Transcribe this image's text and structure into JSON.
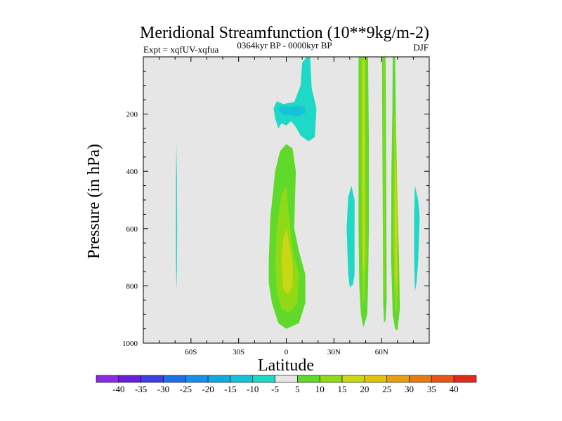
{
  "chart_data": {
    "type": "contour",
    "title": "Meridional Streamfunction (10**9kg/m-2)",
    "subtitle_left": "Expt = xqfUV-xqfua",
    "subtitle_center": "0364kyr BP - 0000kyr BP",
    "subtitle_right": "DJF",
    "xlabel": "Latitude",
    "ylabel": "Pressure (in hPa)",
    "xlim": [
      -90,
      90
    ],
    "ylim": [
      1000,
      0
    ],
    "x_ticks": [
      {
        "value": -60,
        "label": "60S"
      },
      {
        "value": -30,
        "label": "30S"
      },
      {
        "value": 0,
        "label": "0"
      },
      {
        "value": 30,
        "label": "30N"
      },
      {
        "value": 60,
        "label": "60N"
      }
    ],
    "y_ticks": [
      {
        "value": 200,
        "label": "200"
      },
      {
        "value": 400,
        "label": "400"
      },
      {
        "value": 600,
        "label": "600"
      },
      {
        "value": 800,
        "label": "800"
      },
      {
        "value": 1000,
        "label": "1000"
      }
    ],
    "background_color": "#e6e6e6",
    "colorbar": {
      "labels": [
        "-40",
        "-35",
        "-30",
        "-25",
        "-20",
        "-15",
        "-10",
        "-5",
        "5",
        "10",
        "15",
        "20",
        "25",
        "30",
        "35",
        "40"
      ],
      "colors": [
        "#8a2be2",
        "#6a1fd8",
        "#3f3fdd",
        "#1f6fe8",
        "#1a8fe6",
        "#12a9e0",
        "#14c3d8",
        "#1ed9c6",
        "#e6e6e6",
        "#5fd92a",
        "#8fd916",
        "#c8d812",
        "#e0c410",
        "#e8a010",
        "#e87a12",
        "#e85418",
        "#e02a1e"
      ]
    },
    "contours": [
      {
        "name": "sh-narrow-negative",
        "level": "-5",
        "color": "#1ed9c6",
        "points": [
          [
            -69.2,
            300
          ],
          [
            -68.8,
            420
          ],
          [
            -68.7,
            600
          ],
          [
            -68.8,
            740
          ],
          [
            -69.1,
            815
          ],
          [
            -69.4,
            740
          ],
          [
            -69.5,
            600
          ],
          [
            -69.4,
            420
          ]
        ]
      },
      {
        "name": "upper-negative-5",
        "level": "-5",
        "color": "#1ed9c6",
        "points": [
          [
            -8,
            180
          ],
          [
            -6,
            155
          ],
          [
            -2,
            165
          ],
          [
            5,
            158
          ],
          [
            9,
            100
          ],
          [
            10,
            20
          ],
          [
            13,
            -5
          ],
          [
            15,
            0
          ],
          [
            16,
            110
          ],
          [
            19,
            180
          ],
          [
            18,
            280
          ],
          [
            14,
            295
          ],
          [
            9,
            275
          ],
          [
            6,
            245
          ],
          [
            3,
            225
          ],
          [
            0,
            240
          ],
          [
            -3,
            232
          ],
          [
            -5,
            250
          ],
          [
            -7,
            215
          ]
        ]
      },
      {
        "name": "upper-negative-10",
        "level": "-10",
        "color": "#14c3d8",
        "points": [
          [
            -5,
            185
          ],
          [
            -3,
            170
          ],
          [
            2,
            175
          ],
          [
            8,
            170
          ],
          [
            12,
            175
          ],
          [
            12,
            195
          ],
          [
            8,
            208
          ],
          [
            3,
            204
          ],
          [
            -2,
            202
          ]
        ]
      },
      {
        "name": "equatorial-positive-5",
        "level": "5",
        "color": "#5fd92a",
        "points": [
          [
            -11,
            710
          ],
          [
            -10,
            560
          ],
          [
            -7,
            400
          ],
          [
            -4,
            330
          ],
          [
            0,
            305
          ],
          [
            4,
            320
          ],
          [
            6,
            400
          ],
          [
            5,
            600
          ],
          [
            8,
            680
          ],
          [
            12,
            760
          ],
          [
            12,
            860
          ],
          [
            8,
            930
          ],
          [
            0,
            950
          ],
          [
            -5,
            930
          ],
          [
            -9,
            860
          ],
          [
            -11,
            790
          ]
        ]
      },
      {
        "name": "equatorial-positive-10",
        "level": "10",
        "color": "#8fd916",
        "points": [
          [
            -7,
            720
          ],
          [
            -6,
            600
          ],
          [
            -3,
            480
          ],
          [
            0,
            450
          ],
          [
            1,
            520
          ],
          [
            3,
            620
          ],
          [
            5,
            700
          ],
          [
            8,
            760
          ],
          [
            7,
            860
          ],
          [
            2,
            895
          ],
          [
            -3,
            880
          ],
          [
            -6,
            820
          ]
        ]
      },
      {
        "name": "equatorial-positive-15",
        "level": "15",
        "color": "#c8d812",
        "points": [
          [
            -3,
            710
          ],
          [
            -2,
            640
          ],
          [
            0,
            600
          ],
          [
            2,
            650
          ],
          [
            4,
            720
          ],
          [
            4,
            800
          ],
          [
            1,
            830
          ],
          [
            -2,
            810
          ]
        ]
      },
      {
        "name": "nh-negative-42",
        "level": "-5",
        "color": "#1ed9c6",
        "points": [
          [
            39,
            490
          ],
          [
            41,
            450
          ],
          [
            43,
            500
          ],
          [
            43,
            760
          ],
          [
            42,
            795
          ],
          [
            40,
            805
          ],
          [
            39,
            760
          ],
          [
            38,
            600
          ]
        ]
      },
      {
        "name": "nh-positive-48",
        "level": "5",
        "color": "#5fd92a",
        "points": [
          [
            45.5,
            -5
          ],
          [
            51.5,
            -5
          ],
          [
            52,
            300
          ],
          [
            52,
            600
          ],
          [
            51.5,
            800
          ],
          [
            51,
            900
          ],
          [
            48.5,
            945
          ],
          [
            47,
            900
          ],
          [
            46,
            800
          ],
          [
            45.5,
            600
          ],
          [
            45.5,
            300
          ]
        ]
      },
      {
        "name": "nh-positive-48-inner",
        "level": "10",
        "color": "#8fd916",
        "points": [
          [
            47,
            0
          ],
          [
            50,
            0
          ],
          [
            50,
            400
          ],
          [
            50.5,
            700
          ],
          [
            49,
            860
          ],
          [
            48,
            850
          ],
          [
            47.5,
            700
          ],
          [
            47,
            400
          ]
        ]
      },
      {
        "name": "nh-positive-48-core",
        "level": "15",
        "color": "#c8d812",
        "points": [
          [
            48.2,
            10
          ],
          [
            49.2,
            10
          ],
          [
            49.4,
            300
          ],
          [
            49.2,
            700
          ],
          [
            48.6,
            760
          ],
          [
            48.2,
            700
          ],
          [
            48,
            300
          ]
        ]
      },
      {
        "name": "nh-positive-62",
        "level": "5",
        "color": "#5fd92a",
        "points": [
          [
            60.3,
            -5
          ],
          [
            62.5,
            -5
          ],
          [
            62.8,
            300
          ],
          [
            63,
            600
          ],
          [
            63.2,
            850
          ],
          [
            62.5,
            920
          ],
          [
            61.5,
            930
          ],
          [
            61,
            850
          ],
          [
            60.8,
            600
          ],
          [
            60.5,
            300
          ]
        ]
      },
      {
        "name": "nh-positive-62-inner",
        "level": "10",
        "color": "#8fd916",
        "points": [
          [
            61.1,
            5
          ],
          [
            61.9,
            5
          ],
          [
            62,
            500
          ],
          [
            62,
            800
          ],
          [
            61.6,
            870
          ],
          [
            61.3,
            800
          ],
          [
            61.2,
            500
          ]
        ]
      },
      {
        "name": "nh-positive-70",
        "level": "5",
        "color": "#5fd92a",
        "points": [
          [
            67,
            -5
          ],
          [
            68.5,
            -5
          ],
          [
            69,
            200
          ],
          [
            69.5,
            400
          ],
          [
            71,
            700
          ],
          [
            71.5,
            880
          ],
          [
            70,
            955
          ],
          [
            68.5,
            950
          ],
          [
            67,
            900
          ],
          [
            66,
            700
          ],
          [
            66.2,
            400
          ],
          [
            66.8,
            200
          ]
        ]
      },
      {
        "name": "nh-positive-70-inner",
        "level": "10",
        "color": "#8fd916",
        "points": [
          [
            68,
            200
          ],
          [
            69,
            200
          ],
          [
            70,
            500
          ],
          [
            70.5,
            780
          ],
          [
            69.5,
            900
          ],
          [
            68.4,
            880
          ],
          [
            67.5,
            700
          ],
          [
            67.5,
            450
          ]
        ]
      },
      {
        "name": "nh-positive-70-core",
        "level": "15",
        "color": "#c8d812",
        "points": [
          [
            68.5,
            350
          ],
          [
            69.3,
            400
          ],
          [
            69.8,
            600
          ],
          [
            69.8,
            780
          ],
          [
            69.2,
            820
          ],
          [
            68.6,
            760
          ],
          [
            68.2,
            550
          ]
        ]
      },
      {
        "name": "nh-negative-83",
        "level": "-5",
        "color": "#1ed9c6",
        "points": [
          [
            81,
            450
          ],
          [
            83,
            500
          ],
          [
            84,
            560
          ],
          [
            83,
            720
          ],
          [
            82,
            790
          ],
          [
            81,
            820
          ],
          [
            80.5,
            700
          ],
          [
            80.5,
            550
          ]
        ]
      }
    ]
  }
}
